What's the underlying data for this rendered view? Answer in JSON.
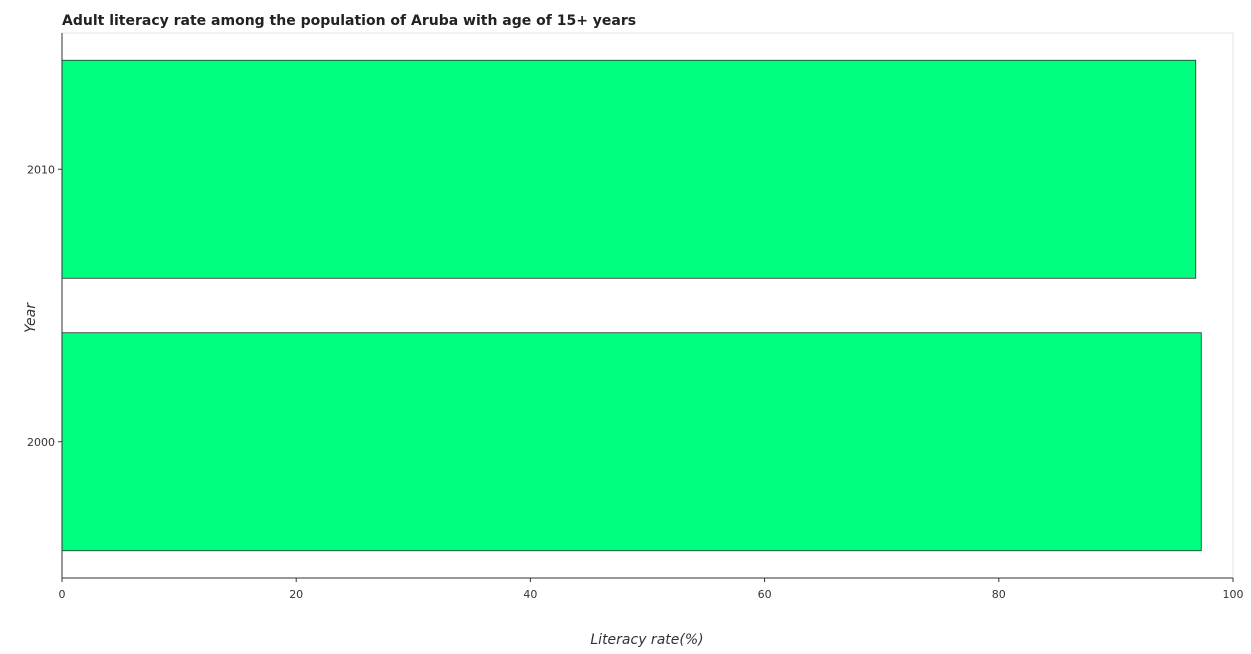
{
  "chart_data": {
    "type": "bar",
    "orientation": "horizontal",
    "title": "Adult literacy rate among the population of Aruba with age of 15+ years",
    "xlabel": "Literacy rate(%)",
    "ylabel": "Year",
    "categories": [
      "2000",
      "2010"
    ],
    "series": [
      {
        "values": [
          97.29,
          96.82
        ]
      }
    ],
    "xlim": [
      0,
      100
    ],
    "xticks": [
      0,
      20,
      40,
      60,
      80,
      100
    ],
    "grid": false,
    "legend": "none",
    "bar_color": "#00ff7f"
  }
}
